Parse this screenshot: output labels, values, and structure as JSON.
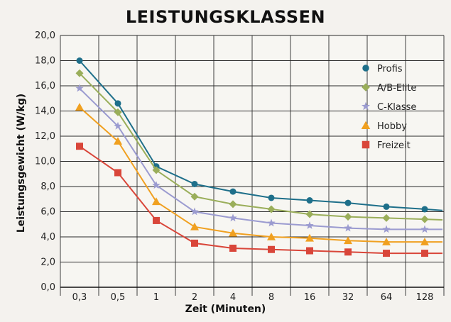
{
  "chart_data": {
    "type": "line",
    "title": "LEISTUNGSKLASSEN",
    "xlabel": "Zeit (Minuten)",
    "ylabel": "Leistungsgewicht (W/kg)",
    "categories": [
      "0,3",
      "0,5",
      "1",
      "2",
      "4",
      "8",
      "16",
      "32",
      "64",
      "128"
    ],
    "yticks": [
      "0,0",
      "2,0",
      "4,0",
      "6,0",
      "8,0",
      "10,0",
      "12,0",
      "14,0",
      "16,0",
      "18,0",
      "20,0"
    ],
    "ylim": [
      0,
      20
    ],
    "grid": true,
    "legend_position": "top-right",
    "series": [
      {
        "name": "Profis",
        "marker": "circle",
        "color": "#1e6f8a",
        "values": [
          18.0,
          14.6,
          9.6,
          8.2,
          7.6,
          7.1,
          6.9,
          6.7,
          6.4,
          6.2
        ]
      },
      {
        "name": "A/B-Elite",
        "marker": "diamond",
        "color": "#9aae5a",
        "values": [
          17.0,
          13.9,
          9.3,
          7.2,
          6.6,
          6.2,
          5.8,
          5.6,
          5.5,
          5.4
        ]
      },
      {
        "name": "C-Klasse",
        "marker": "star",
        "color": "#9b9bd0",
        "values": [
          15.8,
          12.8,
          8.1,
          6.0,
          5.5,
          5.1,
          4.9,
          4.7,
          4.6,
          4.6
        ]
      },
      {
        "name": "Hobby",
        "marker": "triangle",
        "color": "#f0a020",
        "values": [
          14.3,
          11.6,
          6.8,
          4.8,
          4.3,
          4.0,
          3.9,
          3.7,
          3.6,
          3.6
        ]
      },
      {
        "name": "Freizeit",
        "marker": "square",
        "color": "#d9463a",
        "values": [
          11.2,
          9.1,
          5.3,
          3.5,
          3.1,
          3.0,
          2.9,
          2.8,
          2.7,
          2.7
        ]
      }
    ]
  }
}
